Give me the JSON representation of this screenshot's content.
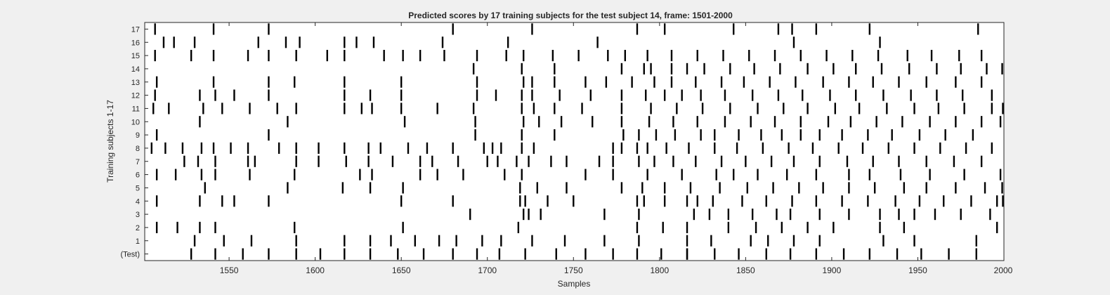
{
  "chart_data": {
    "type": "raster",
    "title": "Predicted scores by 17 training subjects for the test subject 14, frame: 1501-2000",
    "xlabel": "Samples",
    "ylabel": "Training subjects 1-17",
    "xlim": [
      1501,
      2000
    ],
    "x_ticks": [
      1550,
      1600,
      1650,
      1700,
      1750,
      1800,
      1850,
      1900,
      1950,
      2000
    ],
    "y_tick_labels": [
      "(Test)",
      "1",
      "2",
      "3",
      "4",
      "5",
      "6",
      "7",
      "8",
      "9",
      "10",
      "11",
      "12",
      "13",
      "14",
      "15",
      "16",
      "17"
    ],
    "grid": false,
    "line_color": "#000000",
    "rows": [
      {
        "label": "(Test)",
        "events": [
          1528,
          1542,
          1558,
          1573,
          1589,
          1603,
          1617,
          1632,
          1648,
          1663,
          1680,
          1694,
          1707,
          1722,
          1740,
          1757,
          1773,
          1787,
          1801,
          1816,
          1816,
          1832,
          1846,
          1862,
          1876,
          1891,
          1907,
          1922,
          1938,
          1952,
          1968,
          1984
        ]
      },
      {
        "label": "1",
        "events": [
          1530,
          1547,
          1563,
          1589,
          1617,
          1632,
          1644,
          1658,
          1672,
          1682,
          1697,
          1708,
          1726,
          1745,
          1768,
          1788,
          1816,
          1830,
          1853,
          1863,
          1878,
          1893,
          1930,
          1948,
          1984
        ]
      },
      {
        "label": "2",
        "events": [
          1508,
          1520,
          1533,
          1542,
          1588,
          1651,
          1718,
          1787,
          1802,
          1816,
          1840,
          1856,
          1871,
          1886,
          1901,
          1928,
          1942,
          1996
        ]
      },
      {
        "label": "3",
        "events": [
          1690,
          1721,
          1724,
          1731,
          1768,
          1788,
          1820,
          1829,
          1840,
          1854,
          1868,
          1876,
          1893,
          1910,
          1928,
          1939,
          1948,
          1960,
          1975,
          1992
        ]
      },
      {
        "label": "4",
        "events": [
          1508,
          1533,
          1546,
          1553,
          1573,
          1650,
          1680,
          1719,
          1722,
          1735,
          1750,
          1787,
          1791,
          1803,
          1816,
          1822,
          1831,
          1848,
          1862,
          1877,
          1891,
          1906,
          1921,
          1937,
          1951,
          1965,
          1981,
          1996,
          2000
        ]
      },
      {
        "label": "5",
        "events": [
          1536,
          1584,
          1616,
          1632,
          1651,
          1719,
          1729,
          1746,
          1778,
          1790,
          1803,
          1818,
          1835,
          1851,
          1866,
          1881,
          1895,
          1910,
          1925,
          1942,
          1955,
          1972,
          1989,
          1999
        ]
      },
      {
        "label": "6",
        "events": [
          1508,
          1519,
          1534,
          1542,
          1562,
          1588,
          1626,
          1633,
          1661,
          1671,
          1686,
          1710,
          1720,
          1757,
          1773,
          1793,
          1813,
          1833,
          1843,
          1857,
          1874,
          1891,
          1910,
          1922,
          1940,
          1957,
          1977,
          1998
        ]
      },
      {
        "label": "7",
        "events": [
          1524,
          1532,
          1542,
          1561,
          1565,
          1589,
          1602,
          1618,
          1631,
          1645,
          1661,
          1668,
          1683,
          1700,
          1706,
          1717,
          1724,
          1737,
          1746,
          1765,
          1773,
          1788,
          1797,
          1808,
          1821,
          1836,
          1850,
          1865,
          1878,
          1893,
          1909,
          1924,
          1939,
          1955,
          1971,
          1987
        ]
      },
      {
        "label": "8",
        "events": [
          1505,
          1513,
          1523,
          1534,
          1541,
          1551,
          1561,
          1579,
          1589,
          1602,
          1617,
          1631,
          1638,
          1654,
          1665,
          1680,
          1698,
          1703,
          1708,
          1720,
          1727,
          1773,
          1778,
          1787,
          1793,
          1804,
          1817,
          1832,
          1845,
          1860,
          1875,
          1889,
          1904,
          1918,
          1933,
          1948,
          1963,
          1978,
          1993
        ]
      },
      {
        "label": "9",
        "events": [
          1508,
          1573,
          1693,
          1720,
          1739,
          1779,
          1788,
          1798,
          1809,
          1824,
          1832,
          1846,
          1859,
          1871,
          1882,
          1893,
          1906,
          1921,
          1935,
          1951,
          1966,
          1982
        ]
      },
      {
        "label": "10",
        "events": [
          1533,
          1584,
          1652,
          1693,
          1721,
          1730,
          1743,
          1761,
          1778,
          1794,
          1808,
          1822,
          1838,
          1853,
          1867,
          1882,
          1898,
          1911,
          1926,
          1941,
          1957,
          1972,
          1987,
          1998
        ]
      },
      {
        "label": "11",
        "events": [
          1506,
          1515,
          1535,
          1546,
          1562,
          1578,
          1589,
          1617,
          1627,
          1633,
          1650,
          1671,
          1692,
          1720,
          1727,
          1739,
          1755,
          1778,
          1795,
          1810,
          1825,
          1841,
          1857,
          1872,
          1886,
          1902,
          1916,
          1932,
          1948,
          1962,
          1977,
          1993,
          2000
        ]
      },
      {
        "label": "12",
        "events": [
          1507,
          1533,
          1542,
          1553,
          1573,
          1617,
          1632,
          1650,
          1694,
          1705,
          1720,
          1726,
          1742,
          1760,
          1778,
          1792,
          1803,
          1813,
          1824,
          1838,
          1854,
          1869,
          1883,
          1899,
          1914,
          1930,
          1946,
          1961,
          1976,
          1993
        ]
      },
      {
        "label": "13",
        "events": [
          1508,
          1541,
          1573,
          1588,
          1617,
          1650,
          1694,
          1721,
          1726,
          1739,
          1757,
          1769,
          1784,
          1797,
          1807,
          1821,
          1836,
          1849,
          1864,
          1879,
          1895,
          1910,
          1924,
          1939,
          1955,
          1972,
          1987
        ]
      },
      {
        "label": "14",
        "events": [
          1692,
          1720,
          1739,
          1778,
          1791,
          1795,
          1807,
          1816,
          1826,
          1841,
          1855,
          1870,
          1886,
          1901,
          1914,
          1929,
          1945,
          1961,
          1975,
          1990,
          1999
        ]
      },
      {
        "label": "15",
        "events": [
          1507,
          1528,
          1541,
          1561,
          1573,
          1589,
          1607,
          1617,
          1640,
          1651,
          1661,
          1675,
          1694,
          1711,
          1721,
          1738,
          1753,
          1770,
          1780,
          1793,
          1807,
          1822,
          1837,
          1852,
          1867,
          1882,
          1897,
          1912,
          1927,
          1944,
          1958,
          1974,
          1987
        ]
      },
      {
        "label": "16",
        "events": [
          1512,
          1518,
          1530,
          1567,
          1583,
          1591,
          1617,
          1624,
          1634,
          1674,
          1712,
          1764,
          1878,
          1928
        ]
      },
      {
        "label": "17",
        "events": [
          1507,
          1541,
          1573,
          1680,
          1726,
          1787,
          1803,
          1843,
          1869,
          1877,
          1891,
          1922,
          1985
        ]
      }
    ]
  }
}
